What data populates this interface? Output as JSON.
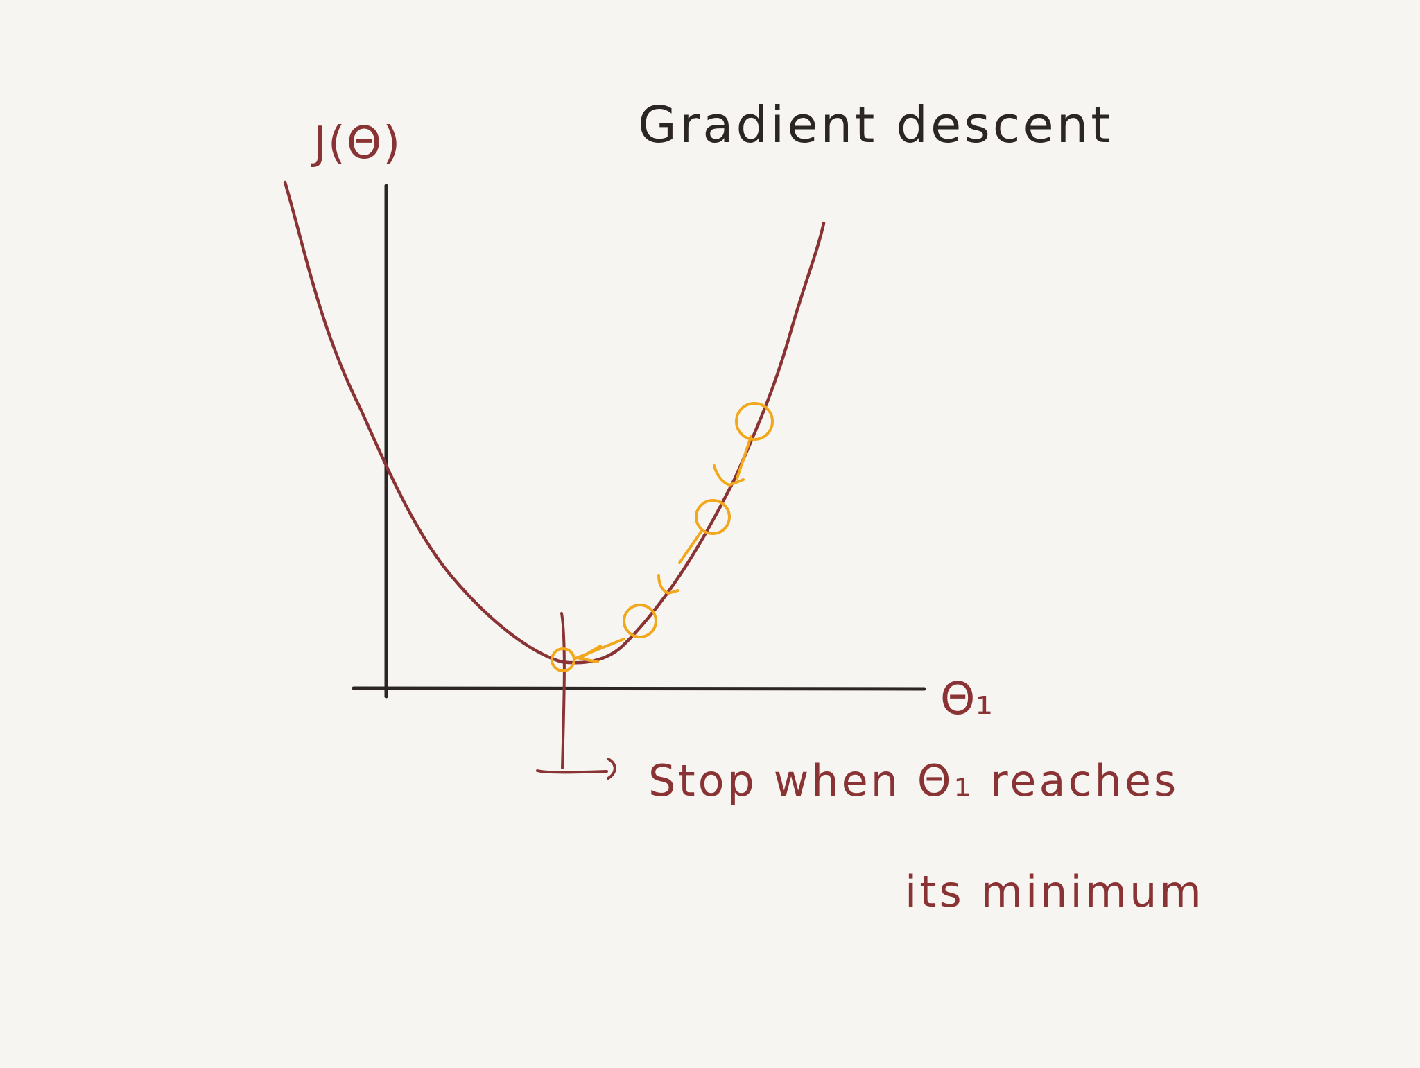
{
  "title": "Gradient descent",
  "y_axis_label": "J(Θ)",
  "x_axis_label": "Θ₁",
  "annotation": {
    "line1": "Stop when Θ₁ reaches",
    "line2": "its minimum"
  },
  "colors": {
    "background": "#f7f5f1",
    "axes": "#2b2525",
    "curve": "#8a3335",
    "steps": "#f2a81d",
    "text_dark": "#2b2525",
    "text_red": "#8a3335"
  },
  "descent_steps": 4
}
